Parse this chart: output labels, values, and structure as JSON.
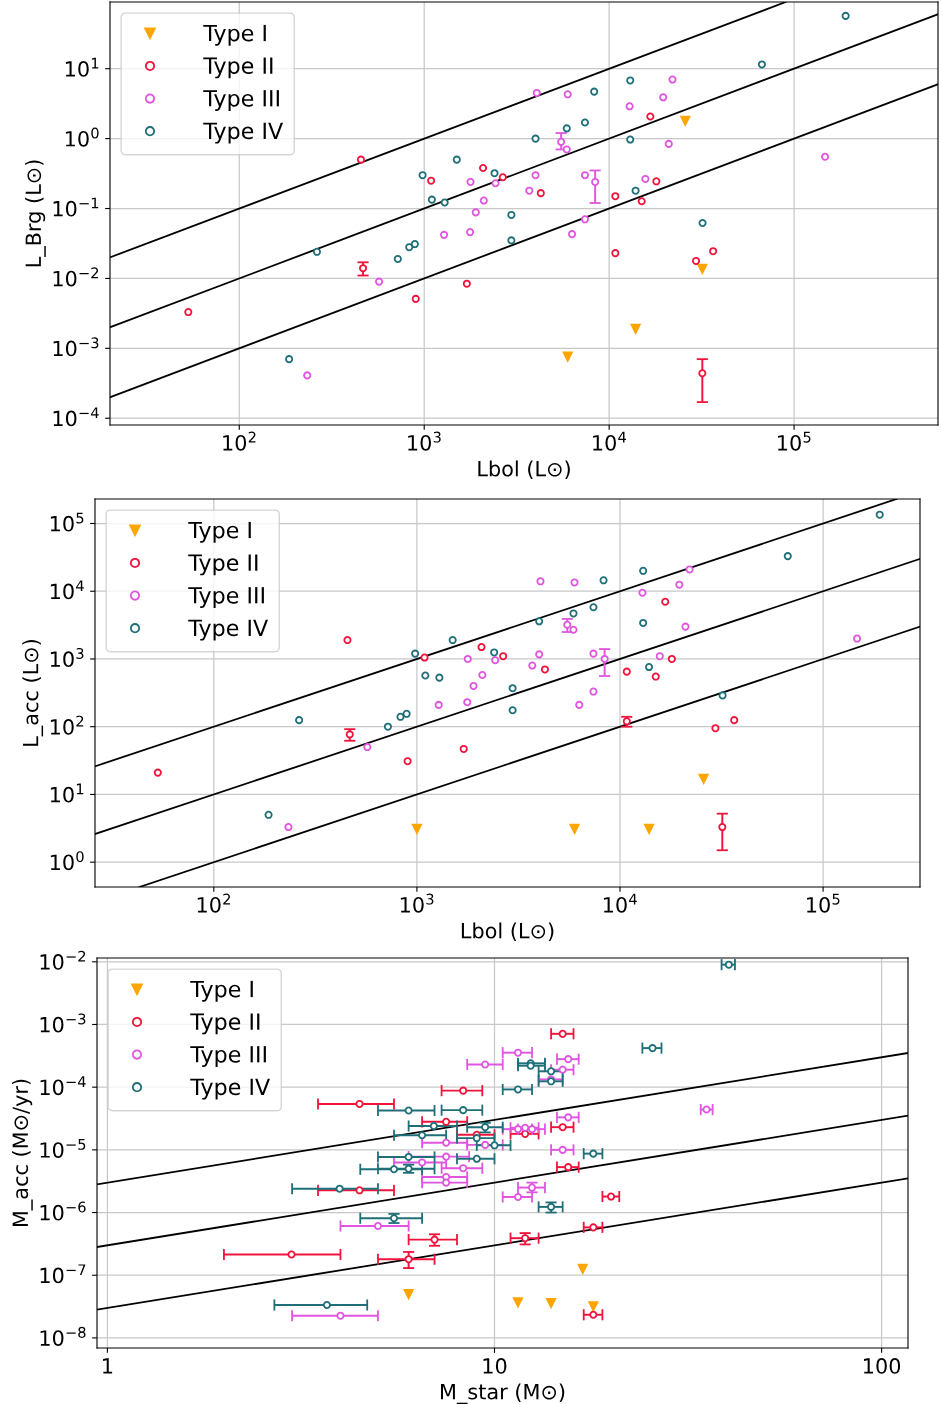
{
  "chart_data": [
    {
      "type": "scatter",
      "xlabel": "Lbol (L⊙)",
      "ylabel": "L_Brg (L⊙)",
      "log": "xy",
      "grid": true,
      "legend": "top left",
      "xlim": [
        20,
        600000
      ],
      "ylim": [
        8e-05,
        90
      ],
      "xticks": [
        {
          "value": 100,
          "label": "10$^{2}$"
        },
        {
          "value": 1000,
          "label": "10$^{3}$"
        },
        {
          "value": 10000,
          "label": "10$^{4}$"
        },
        {
          "value": 100000,
          "label": "10$^{5}$"
        }
      ],
      "yticks": [
        {
          "value": 0.0001,
          "label": "10$^{−4}$"
        },
        {
          "value": 0.001,
          "label": "10$^{−3}$"
        },
        {
          "value": 0.01,
          "label": "10$^{−2}$"
        },
        {
          "value": 0.1,
          "label": "10$^{−1}$"
        },
        {
          "value": 1,
          "label": "10$^{0}$"
        },
        {
          "value": 10,
          "label": "10$^{1}$"
        }
      ],
      "series": [
        {
          "type": "line",
          "color": "#000000",
          "x": [
            20,
            90000
          ],
          "values": [
            0.02,
            90
          ]
        },
        {
          "type": "line",
          "color": "#000000",
          "x": [
            20,
            600000
          ],
          "values": [
            0.002,
            60
          ]
        },
        {
          "type": "line",
          "color": "#000000",
          "x": [
            20,
            600000
          ],
          "values": [
            0.0002,
            6
          ]
        },
        {
          "name": "Type I",
          "color": "#ffa500",
          "marker": "triangle",
          "x": [
            25800,
            31900,
            13900,
            5970
          ],
          "values": [
            1.8,
            0.0137,
            0.0019,
            0.00076
          ]
        },
        {
          "name": "Type II",
          "color": "#f0143c",
          "marker": "circle",
          "x": [
            53,
            455,
            467,
            900,
            1090,
            1700,
            2080,
            2660,
            4270,
            10800,
            10800,
            15000,
            16700,
            18000,
            29500,
            36500,
            31900
          ],
          "values": [
            0.0033,
            0.5,
            0.014,
            0.0051,
            0.25,
            0.0084,
            0.38,
            0.28,
            0.166,
            0.15,
            0.023,
            0.127,
            2.07,
            0.245,
            0.0178,
            0.0245,
            0.00044
          ],
          "errors": [
            null,
            null,
            [
              0.011,
              0.017
            ],
            null,
            null,
            null,
            null,
            null,
            null,
            null,
            null,
            null,
            null,
            null,
            null,
            null,
            [
              0.00017,
              0.0007
            ]
          ]
        },
        {
          "name": "Type III",
          "color": "#e055e0",
          "marker": "circle",
          "x": [
            233,
            570,
            1280,
            1780,
            1770,
            1900,
            2100,
            2430,
            3700,
            4000,
            4060,
            5970,
            5500,
            5900,
            6300,
            7400,
            7400,
            8400,
            12900,
            15700,
            19600,
            21000,
            22000,
            147000
          ],
          "values": [
            0.00041,
            0.009,
            0.042,
            0.24,
            0.046,
            0.088,
            0.13,
            0.23,
            0.18,
            0.3,
            4.5,
            4.3,
            0.9,
            0.7,
            0.043,
            0.07,
            0.3,
            0.24,
            2.9,
            0.265,
            3.9,
            0.84,
            7.0,
            0.55
          ],
          "errors": [
            null,
            null,
            null,
            null,
            null,
            null,
            null,
            null,
            null,
            null,
            null,
            null,
            [
              0.7,
              1.2
            ],
            null,
            null,
            null,
            null,
            [
              0.12,
              0.35
            ],
            null,
            null,
            null,
            null,
            null,
            null
          ]
        },
        {
          "name": "Type IV",
          "color": "#1f6f78",
          "marker": "circle",
          "x": [
            186,
            263,
            720,
            830,
            890,
            980,
            1100,
            1290,
            1500,
            2400,
            2960,
            2960,
            4000,
            5900,
            7400,
            8300,
            13000,
            13000,
            13900,
            32000,
            67000,
            190000
          ],
          "values": [
            0.0007,
            0.024,
            0.019,
            0.028,
            0.031,
            0.3,
            0.134,
            0.122,
            0.5,
            0.32,
            0.081,
            0.035,
            1.0,
            1.4,
            1.7,
            4.7,
            6.8,
            0.97,
            0.18,
            0.062,
            11.5,
            57
          ]
        }
      ]
    },
    {
      "type": "scatter",
      "xlabel": "Lbol (L⊙)",
      "ylabel": "L_acc (L⊙)",
      "log": "xy",
      "grid": true,
      "legend": "top left",
      "xlim": [
        26,
        300000
      ],
      "ylim": [
        0.43,
        230000
      ],
      "xticks": [
        {
          "value": 100,
          "label": "10$^{2}$"
        },
        {
          "value": 1000,
          "label": "10$^{3}$"
        },
        {
          "value": 10000,
          "label": "10$^{4}$"
        },
        {
          "value": 100000,
          "label": "10$^{5}$"
        }
      ],
      "yticks": [
        {
          "value": 1,
          "label": "10$^{0}$"
        },
        {
          "value": 10,
          "label": "10$^{1}$"
        },
        {
          "value": 100,
          "label": "10$^{2}$"
        },
        {
          "value": 1000,
          "label": "10$^{3}$"
        },
        {
          "value": 10000,
          "label": "10$^{4}$"
        },
        {
          "value": 100000,
          "label": "10$^{5}$"
        }
      ],
      "series": [
        {
          "type": "line",
          "color": "#000000",
          "x": [
            26,
            230000
          ],
          "values": [
            26,
            230000
          ]
        },
        {
          "type": "line",
          "color": "#000000",
          "x": [
            26,
            300000
          ],
          "values": [
            2.6,
            30000
          ]
        },
        {
          "type": "line",
          "color": "#000000",
          "x": [
            43,
            300000
          ],
          "values": [
            0.43,
            3000
          ]
        },
        {
          "name": "Type I",
          "color": "#ffa500",
          "marker": "triangle",
          "x": [
            1000,
            5970,
            13900,
            25800
          ],
          "values": [
            3.1,
            3.1,
            3.1,
            17
          ]
        },
        {
          "name": "Type II",
          "color": "#f0143c",
          "marker": "circle",
          "x": [
            53,
            455,
            467,
            900,
            1090,
            1700,
            2080,
            2660,
            4270,
            10800,
            10800,
            15000,
            16700,
            18000,
            29500,
            36500,
            31900
          ],
          "values": [
            21,
            1900,
            77,
            31,
            1050,
            47,
            1500,
            1100,
            700,
            650,
            120,
            550,
            7000,
            1000,
            95,
            125,
            3.3
          ],
          "errors": [
            null,
            null,
            [
              62,
              92
            ],
            null,
            null,
            null,
            null,
            null,
            null,
            null,
            [
              100,
              140
            ],
            null,
            null,
            null,
            null,
            null,
            [
              1.5,
              5.2
            ]
          ]
        },
        {
          "name": "Type III",
          "color": "#e055e0",
          "marker": "circle",
          "x": [
            233,
            570,
            1280,
            1780,
            1770,
            1900,
            2100,
            2430,
            3700,
            4000,
            4060,
            5970,
            5500,
            5900,
            6300,
            7400,
            7400,
            8400,
            12900,
            15700,
            19600,
            21000,
            22000,
            147000
          ],
          "values": [
            3.3,
            50,
            210,
            1000,
            230,
            400,
            580,
            960,
            800,
            1170,
            14000,
            13500,
            3200,
            2700,
            210,
            330,
            1200,
            1000,
            9500,
            1100,
            12500,
            3000,
            21000,
            2000
          ],
          "errors": [
            null,
            null,
            null,
            null,
            null,
            null,
            null,
            null,
            null,
            null,
            null,
            null,
            [
              2500,
              3900
            ],
            null,
            null,
            null,
            null,
            [
              560,
              1400
            ],
            null,
            null,
            null,
            null,
            null,
            null
          ]
        },
        {
          "name": "Type IV",
          "color": "#1f6f78",
          "marker": "circle",
          "x": [
            186,
            263,
            720,
            830,
            890,
            980,
            1100,
            1290,
            1500,
            2400,
            2960,
            2960,
            4000,
            5900,
            7400,
            8300,
            13000,
            13000,
            13900,
            32000,
            67000,
            190000
          ],
          "values": [
            5,
            125,
            100,
            140,
            155,
            1200,
            570,
            530,
            1900,
            1250,
            370,
            175,
            3600,
            4700,
            5800,
            14500,
            20000,
            3400,
            760,
            290,
            33000,
            135000
          ]
        }
      ]
    },
    {
      "type": "scatter",
      "xlabel": "M_star (M⊙)",
      "ylabel": "M_acc (M⊙/yr)",
      "log": "xy",
      "grid": true,
      "legend": "top left",
      "xlim": [
        0.94,
        117
      ],
      "ylim": [
        6.9e-09,
        0.0115
      ],
      "xticks": [
        1,
        10,
        100
      ],
      "yticks": [
        {
          "value": 1e-08,
          "label": "10$^{−8}$"
        },
        {
          "value": 1e-07,
          "label": "10$^{−7}$"
        },
        {
          "value": 1e-06,
          "label": "10$^{−6}$"
        },
        {
          "value": 1e-05,
          "label": "10$^{−5}$"
        },
        {
          "value": 0.0001,
          "label": "10$^{−4}$"
        },
        {
          "value": 0.001,
          "label": "10$^{−3}$"
        },
        {
          "value": 0.01,
          "label": "10$^{−2}$"
        }
      ],
      "series": [
        {
          "type": "line",
          "color": "#000000",
          "x": [
            0.94,
            117
          ],
          "values": [
            2.82e-06,
            0.000351
          ]
        },
        {
          "type": "line",
          "color": "#000000",
          "x": [
            0.94,
            117
          ],
          "values": [
            2.82e-07,
            3.51e-05
          ]
        },
        {
          "type": "line",
          "color": "#000000",
          "x": [
            0.94,
            117
          ],
          "values": [
            2.82e-08,
            3.51e-06
          ]
        },
        {
          "name": "Type I",
          "color": "#ffa500",
          "marker": "triangle",
          "x": [
            6.0,
            16.9,
            11.5,
            14.0,
            18.0
          ],
          "values": [
            5e-08,
            1.26e-07,
            3.7e-08,
            3.6e-08,
            3.2e-08
          ]
        },
        {
          "name": "Type II",
          "color": "#f0143c",
          "marker": "circle",
          "x": [
            15.0,
            8.3,
            4.48,
            7.5,
            15.0,
            9.0,
            12.0,
            15.5,
            20.0,
            4.48,
            18.0,
            7.0,
            12.0,
            2.99,
            6.0,
            18.0
          ],
          "values": [
            0.00071,
            8.8e-05,
            5.4e-05,
            2.8e-05,
            2.3e-05,
            1.74e-05,
            1.8e-05,
            5.3e-06,
            1.8e-06,
            2.26e-06,
            5.8e-07,
            3.7e-07,
            3.9e-07,
            2.14e-07,
            1.8e-07,
            2.34e-08
          ],
          "xerrors": [
            [
              14,
              16
            ],
            [
              7.3,
              9.3
            ],
            [
              3.5,
              5.5
            ],
            [
              6.5,
              8.5
            ],
            [
              14,
              16
            ],
            [
              8,
              10
            ],
            [
              11,
              13
            ],
            [
              14.5,
              16.5
            ],
            [
              19,
              21
            ],
            [
              3.5,
              5.5
            ],
            [
              17,
              19
            ],
            [
              6,
              8
            ],
            [
              11,
              13
            ],
            [
              2.0,
              4.0
            ],
            [
              5,
              7
            ],
            [
              17,
              19
            ]
          ],
          "errors": [
            null,
            null,
            null,
            null,
            null,
            null,
            null,
            null,
            null,
            null,
            null,
            [
              2.95e-07,
              4.5e-07
            ],
            [
              3.1e-07,
              4.7e-07
            ],
            null,
            [
              1.3e-07,
              2.35e-07
            ],
            null
          ]
        },
        {
          "name": "Type III",
          "color": "#e055e0",
          "marker": "circle",
          "x": [
            11.5,
            9.46,
            15.5,
            15.0,
            14.0,
            15.5,
            35.3,
            11.5,
            12.0,
            12.5,
            7.5,
            9.46,
            15.0,
            7.5,
            6.5,
            8.3,
            7.5,
            7.5,
            12.5,
            11.5,
            5.0,
            4.0
          ],
          "values": [
            0.000355,
            0.00023,
            0.00028,
            0.00019,
            0.000133,
            3.3e-05,
            4.4e-05,
            2.14e-05,
            2.25e-05,
            2.14e-05,
            1.3e-05,
            1.2e-05,
            1e-05,
            7.8e-06,
            6.3e-06,
            5.1e-06,
            3.7e-06,
            3e-06,
            2.5e-06,
            1.77e-06,
            6.1e-07,
            2.26e-08
          ],
          "xerrors": [
            [
              10.5,
              12.5
            ],
            [
              8.5,
              10.5
            ],
            [
              14.5,
              16.5
            ],
            [
              14,
              16
            ],
            [
              13,
              15
            ],
            [
              14.5,
              16.5
            ],
            [
              34.1,
              36.6
            ],
            [
              10.5,
              12.5
            ],
            [
              11,
              13
            ],
            [
              11.5,
              13.5
            ],
            [
              6.5,
              8.5
            ],
            [
              8.5,
              10.5
            ],
            [
              14,
              16
            ],
            [
              6.0,
              8.6
            ],
            [
              5.5,
              7.5
            ],
            [
              7.3,
              9.3
            ],
            [
              6.5,
              8.5
            ],
            [
              6.5,
              8.5
            ],
            [
              11.5,
              13.5
            ],
            [
              10.5,
              12.5
            ],
            [
              4,
              6
            ],
            [
              3,
              5
            ]
          ],
          "errors": [
            null,
            null,
            null,
            null,
            null,
            null,
            null,
            null,
            null,
            null,
            null,
            null,
            null,
            null,
            null,
            null,
            null,
            null,
            [
              2.1e-06,
              3e-06
            ],
            null,
            null,
            null
          ]
        },
        {
          "name": "Type IV",
          "color": "#1f6f78",
          "marker": "circle",
          "x": [
            12.4,
            12.4,
            14.0,
            14.0,
            11.5,
            25.6,
            40.3,
            6.0,
            8.3,
            6.97,
            9.46,
            6.5,
            9.0,
            10.0,
            18.0,
            6.0,
            9.0,
            5.5,
            6.0,
            3.98,
            14.0,
            5.5,
            3.69
          ],
          "values": [
            0.00024,
            0.00022,
            0.000179,
            0.000124,
            9.2e-05,
            0.00042,
            0.009,
            4.24e-05,
            4.3e-05,
            2.4e-05,
            2.3e-05,
            1.71e-05,
            1.54e-05,
            1.18e-05,
            8.7e-06,
            7.7e-06,
            7.2e-06,
            4.9e-06,
            5e-06,
            2.4e-06,
            1.23e-06,
            8.1e-07,
            3.35e-08
          ],
          "xerrors": [
            [
              11.5,
              13.5
            ],
            [
              11.5,
              13.5
            ],
            [
              13,
              15
            ],
            [
              13,
              15
            ],
            [
              10.5,
              12.5
            ],
            [
              24.1,
              27.0
            ],
            [
              38.6,
              41.8
            ],
            [
              5,
              7
            ],
            [
              7.3,
              9.3
            ],
            [
              6,
              8
            ],
            [
              8.5,
              10.5
            ],
            [
              5.5,
              7.5
            ],
            [
              8,
              10
            ],
            [
              9,
              11
            ],
            [
              17,
              19
            ],
            [
              5,
              7
            ],
            [
              8,
              10
            ],
            [
              4.5,
              6.5
            ],
            [
              5,
              7
            ],
            [
              3.0,
              5.0
            ],
            [
              13,
              15
            ],
            [
              4.5,
              6.5
            ],
            [
              2.7,
              4.69
            ]
          ],
          "errors": [
            null,
            null,
            null,
            null,
            null,
            null,
            null,
            null,
            null,
            null,
            [
              1.9e-05,
              2.7e-05
            ],
            null,
            null,
            null,
            null,
            null,
            null,
            null,
            [
              4.3e-06,
              5.8e-06
            ],
            null,
            [
              1e-06,
              1.45e-06
            ],
            [
              6.8e-07,
              9.5e-07
            ],
            null
          ]
        }
      ]
    }
  ]
}
